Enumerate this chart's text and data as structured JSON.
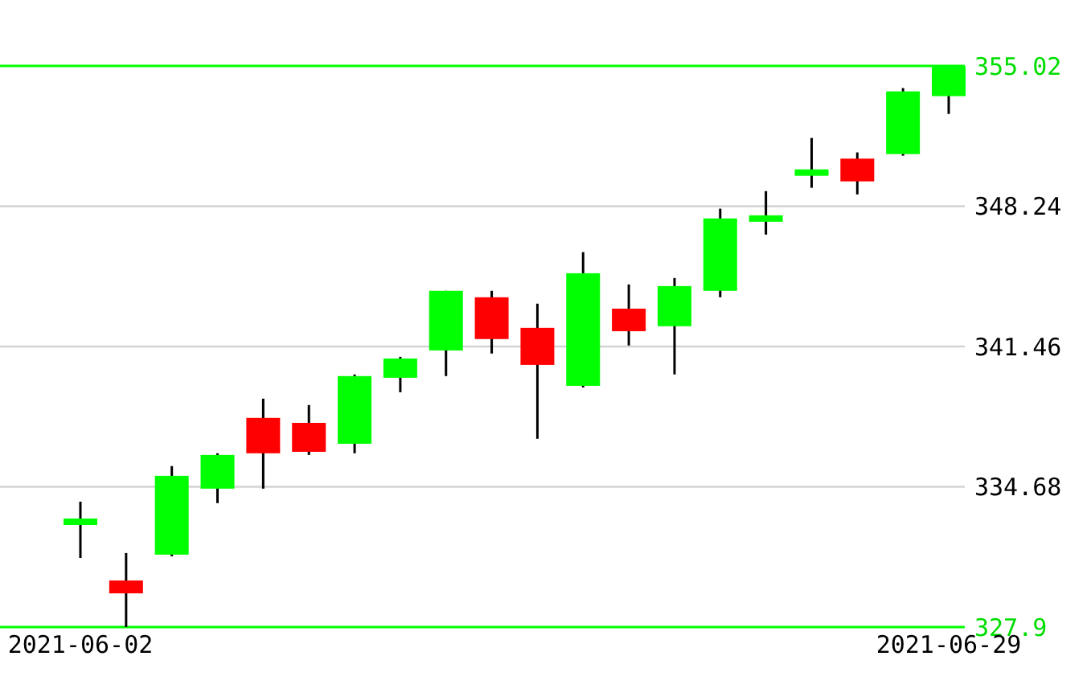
{
  "chart_data": {
    "type": "candlestick",
    "categories": [
      "2021-06-02",
      null,
      null,
      null,
      null,
      null,
      null,
      null,
      null,
      null,
      null,
      null,
      null,
      null,
      null,
      null,
      null,
      null,
      null,
      "2021-06-29"
    ],
    "ohlc": [
      [
        332.95,
        333.96,
        331.24,
        333.03
      ],
      [
        330.15,
        331.48,
        327.9,
        329.53
      ],
      [
        331.4,
        335.68,
        331.32,
        335.21
      ],
      [
        334.59,
        336.3,
        333.89,
        336.22
      ],
      [
        338.01,
        338.94,
        334.59,
        336.3
      ],
      [
        337.77,
        338.63,
        336.22,
        336.37
      ],
      [
        336.76,
        340.11,
        336.3,
        340.03
      ],
      [
        339.95,
        340.96,
        339.25,
        340.88
      ],
      [
        341.27,
        344.15,
        340.03,
        344.15
      ],
      [
        343.84,
        344.15,
        341.12,
        341.82
      ],
      [
        342.36,
        343.53,
        337.0,
        340.57
      ],
      [
        339.56,
        346.02,
        339.48,
        345.0
      ],
      [
        343.29,
        344.46,
        341.51,
        342.2
      ],
      [
        342.44,
        344.77,
        340.11,
        344.38
      ],
      [
        344.15,
        348.12,
        343.84,
        347.65
      ],
      [
        347.49,
        348.97,
        346.87,
        347.8
      ],
      [
        349.75,
        351.54,
        349.13,
        349.98
      ],
      [
        350.54,
        350.84,
        348.81,
        349.44
      ],
      [
        350.76,
        353.95,
        350.68,
        353.79
      ],
      [
        353.56,
        355.02,
        352.7,
        355.02
      ]
    ],
    "colors": [
      "#00ff00",
      "#ff0000",
      "#00ff00",
      "#00ff00",
      "#ff0000",
      "#ff0000",
      "#00ff00",
      "#00ff00",
      "#00ff00",
      "#ff0000",
      "#ff0000",
      "#00ff00",
      "#ff0000",
      "#00ff00",
      "#00ff00",
      "#00ff00",
      "#00ff00",
      "#ff0000",
      "#00ff00",
      "#00ff00"
    ],
    "ylim": [
      327.9,
      355.02
    ],
    "yticks": [
      327.9,
      334.68,
      341.46,
      348.24,
      355.02
    ],
    "grid": true
  }
}
